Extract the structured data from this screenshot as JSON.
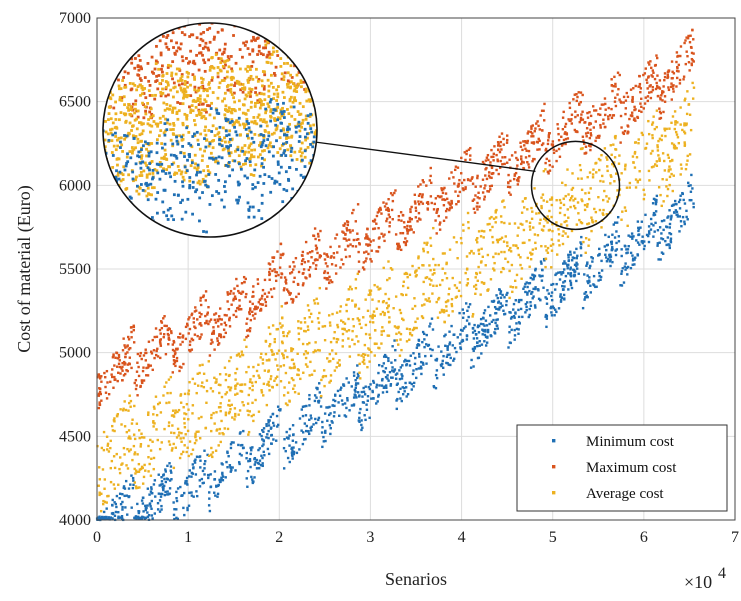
{
  "chart_data": {
    "type": "scatter",
    "title": "",
    "xlabel": "Senarios",
    "ylabel": "Cost of material (Euro)",
    "x_multiplier_label": "×10",
    "x_multiplier_exp": "4",
    "xlim": [
      0,
      7
    ],
    "ylim": [
      4000,
      7000
    ],
    "x_ticks": [
      "0",
      "1",
      "2",
      "3",
      "4",
      "5",
      "6",
      "7"
    ],
    "y_ticks": [
      "4000",
      "4500",
      "5000",
      "5500",
      "6000",
      "6500",
      "7000"
    ],
    "grid": true,
    "legend_position": "bottom-right",
    "inset": {
      "type": "magnifier",
      "center": [
        5.25,
        6000
      ]
    },
    "series": [
      {
        "name": "Minimum cost",
        "color": "#1f6fb4",
        "trend": {
          "x": [
            0,
            1,
            2,
            3,
            4,
            5,
            6,
            6.55
          ],
          "y": [
            4050,
            4250,
            4560,
            4830,
            5150,
            5450,
            5750,
            5930
          ]
        }
      },
      {
        "name": "Maximum cost",
        "color": "#d9541d",
        "trend": {
          "x": [
            0,
            1,
            2,
            3,
            4,
            5,
            6,
            6.55
          ],
          "y": [
            4750,
            5000,
            5350,
            5600,
            5900,
            6200,
            6450,
            6650
          ]
        }
      },
      {
        "name": "Average cost",
        "color": "#edb120",
        "trend": {
          "x": [
            0,
            1,
            2,
            3,
            4,
            5,
            6,
            6.55
          ],
          "y": [
            4350,
            4600,
            4950,
            5200,
            5500,
            5800,
            6100,
            6300
          ]
        }
      }
    ]
  }
}
